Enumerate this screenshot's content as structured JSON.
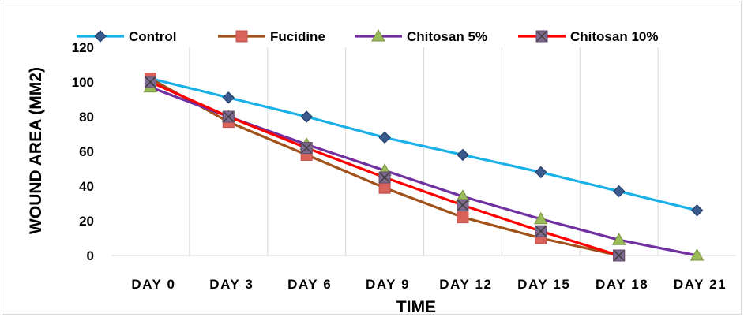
{
  "chart_data": {
    "type": "line",
    "title": "",
    "xlabel": "TIME",
    "ylabel": "WOUND AREA (MM2)",
    "categories": [
      "DAY 0",
      "DAY 3",
      "DAY 6",
      "DAY 9",
      "DAY 12",
      "DAY 15",
      "DAY 18",
      "DAY 21"
    ],
    "ylim": [
      0,
      120
    ],
    "yticks": [
      "0",
      "20",
      "40",
      "60",
      "80",
      "100",
      "120"
    ],
    "grid": "vertical",
    "legend_position": "top",
    "series": [
      {
        "name": "Control",
        "color": "#1ab0e8",
        "marker": "diamond",
        "marker_color": "#3a5a8c",
        "values": [
          102,
          91,
          80,
          68,
          58,
          48,
          37,
          26
        ]
      },
      {
        "name": "Fucidine",
        "color": "#a0521a",
        "marker": "square",
        "marker_color": "#d9625a",
        "values": [
          102,
          77,
          58,
          39,
          22,
          10,
          0,
          null
        ]
      },
      {
        "name": "Chitosan 5%",
        "color": "#7030a0",
        "marker": "triangle",
        "marker_color": "#9bbb59",
        "values": [
          97,
          80,
          64,
          49,
          34,
          21,
          9,
          0
        ]
      },
      {
        "name": "Chitosan 10%",
        "color": "#ff0000",
        "marker": "square-x",
        "marker_color": "#7f6a8f",
        "values": [
          100,
          80,
          62,
          45,
          29,
          14,
          0,
          null
        ]
      }
    ]
  }
}
